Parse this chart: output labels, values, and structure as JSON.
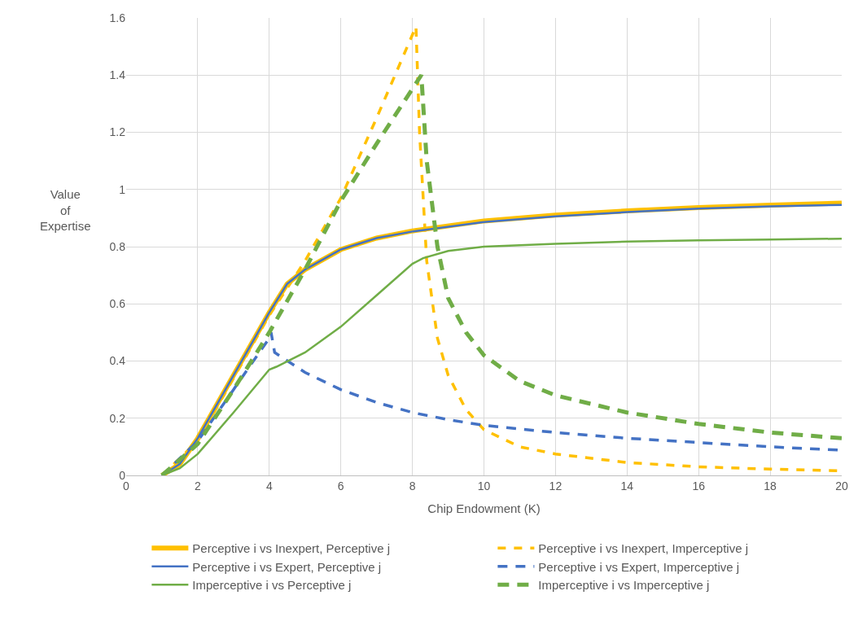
{
  "chart_data": {
    "type": "line",
    "xlabel": "Chip Endowment (K)",
    "ylabel": "Value of Expertise",
    "xlim": [
      0,
      20
    ],
    "xticks": [
      0,
      2,
      4,
      6,
      8,
      10,
      12,
      14,
      16,
      18,
      20
    ],
    "ylim": [
      0,
      1.6
    ],
    "yticks": [
      0,
      0.2,
      0.4,
      0.6,
      0.8,
      1,
      1.2,
      1.4,
      1.6
    ],
    "grid": true,
    "legend": "bottom",
    "marker": "none",
    "series": [
      {
        "name": "Perceptive i vs Inexpert, Perceptive j",
        "color": "#ffc000",
        "line_style": "solid",
        "x": [
          1,
          1.5,
          2,
          3,
          4,
          4.5,
          5,
          6,
          7,
          8,
          10,
          12,
          14,
          16,
          18,
          20
        ],
        "values": [
          0,
          0.04,
          0.13,
          0.35,
          0.57,
          0.67,
          0.72,
          0.79,
          0.83,
          0.855,
          0.89,
          0.91,
          0.925,
          0.937,
          0.945,
          0.952
        ]
      },
      {
        "name": "Perceptive i vs Inexpert, Imperceptive j",
        "color": "#ffc000",
        "line_style": "dashed",
        "x": [
          1,
          2,
          3,
          4,
          5,
          6,
          7,
          8.1,
          8.2,
          8.4,
          8.7,
          9,
          9.5,
          10,
          11,
          12,
          14,
          16,
          18,
          20
        ],
        "values": [
          0,
          0.12,
          0.34,
          0.56,
          0.75,
          0.97,
          1.25,
          1.57,
          1.2,
          0.75,
          0.48,
          0.35,
          0.23,
          0.16,
          0.1,
          0.075,
          0.045,
          0.03,
          0.022,
          0.016
        ]
      },
      {
        "name": "Perceptive i vs Expert, Perceptive j",
        "color": "#4472c4",
        "line_style": "solid",
        "x": [
          1,
          1.5,
          2,
          3,
          4,
          4.5,
          5,
          6,
          7,
          8,
          10,
          12,
          14,
          16,
          18,
          20
        ],
        "values": [
          0,
          0.04,
          0.13,
          0.35,
          0.57,
          0.67,
          0.72,
          0.79,
          0.83,
          0.853,
          0.886,
          0.906,
          0.921,
          0.933,
          0.941,
          0.946
        ]
      },
      {
        "name": "Perceptive i vs Expert, Imperceptive j",
        "color": "#4472c4",
        "line_style": "dashed",
        "x": [
          1,
          2,
          3,
          4,
          4.05,
          4.15,
          5,
          6,
          7,
          8,
          9,
          10,
          12,
          14,
          16,
          18,
          20
        ],
        "values": [
          0,
          0.12,
          0.3,
          0.48,
          0.5,
          0.43,
          0.36,
          0.3,
          0.255,
          0.22,
          0.195,
          0.175,
          0.15,
          0.13,
          0.115,
          0.1,
          0.088
        ]
      },
      {
        "name": "Imperceptive i vs Perceptive j",
        "color": "#70ad47",
        "line_style": "solid",
        "x": [
          1,
          1.5,
          2,
          3,
          4,
          4.2,
          5,
          6,
          7,
          8,
          8.3,
          9,
          10,
          12,
          14,
          16,
          18,
          20
        ],
        "values": [
          0,
          0.025,
          0.075,
          0.22,
          0.37,
          0.38,
          0.43,
          0.52,
          0.63,
          0.74,
          0.76,
          0.785,
          0.8,
          0.81,
          0.818,
          0.822,
          0.825,
          0.828
        ]
      },
      {
        "name": "Imperceptive i vs Imperceptive j",
        "color": "#70ad47",
        "line_style": "dashed",
        "x": [
          1,
          2,
          3,
          4,
          5,
          6,
          7,
          8.25,
          8.4,
          8.7,
          9,
          9.5,
          10,
          11,
          12,
          14,
          16,
          18,
          20
        ],
        "values": [
          0,
          0.11,
          0.3,
          0.5,
          0.72,
          0.96,
          1.16,
          1.4,
          1.1,
          0.8,
          0.62,
          0.5,
          0.42,
          0.33,
          0.28,
          0.22,
          0.18,
          0.15,
          0.13
        ]
      }
    ]
  }
}
